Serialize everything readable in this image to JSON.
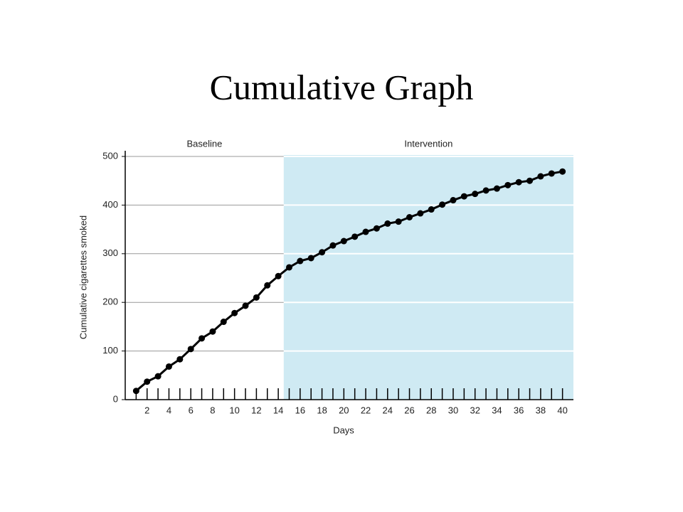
{
  "chart_data": {
    "type": "line",
    "title": "Cumulative Graph",
    "x_label": "Days",
    "y_label": "Cumulative cigarettes smoked",
    "phases": [
      {
        "name": "Baseline",
        "start": 1,
        "end": 14
      },
      {
        "name": "Intervention",
        "start": 15,
        "end": 40
      }
    ],
    "x": [
      1,
      2,
      3,
      4,
      5,
      6,
      7,
      8,
      9,
      10,
      11,
      12,
      13,
      14,
      15,
      16,
      17,
      18,
      19,
      20,
      21,
      22,
      23,
      24,
      25,
      26,
      27,
      28,
      29,
      30,
      31,
      32,
      33,
      34,
      35,
      36,
      37,
      38,
      39,
      40
    ],
    "series": [
      {
        "name": "Cumulative cigarettes smoked",
        "color": "#000000",
        "values": [
          18,
          37,
          48,
          68,
          83,
          104,
          126,
          140,
          160,
          178,
          193,
          210,
          235,
          254,
          272,
          285,
          291,
          303,
          317,
          326,
          335,
          345,
          352,
          362,
          366,
          375,
          383,
          391,
          401,
          410,
          418,
          423,
          430,
          434,
          441,
          447,
          450,
          459,
          465,
          469
        ]
      }
    ],
    "xlim": [
      0,
      41
    ],
    "xticks": [
      2,
      4,
      6,
      8,
      10,
      12,
      14,
      16,
      18,
      20,
      22,
      24,
      26,
      28,
      30,
      32,
      34,
      36,
      38,
      40
    ],
    "ylim": [
      0,
      500
    ],
    "yticks": [
      0,
      100,
      200,
      300,
      400,
      500
    ],
    "grid": true,
    "shade_color": "#cfeaf3"
  }
}
